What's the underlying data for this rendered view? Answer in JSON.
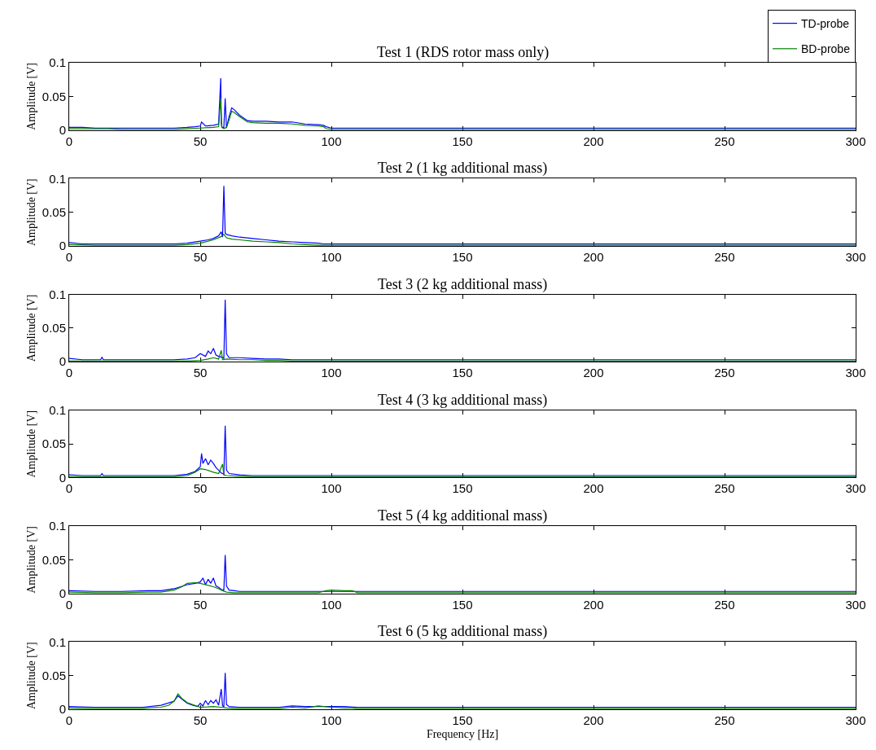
{
  "chart_data": [
    {
      "type": "line",
      "title": "Test 1 (RDS rotor mass only)",
      "ylabel": "Amplitude [V]",
      "xlim": [
        0,
        300
      ],
      "xticks": [
        0,
        50,
        100,
        150,
        200,
        250,
        300
      ],
      "ylim": [
        0,
        0.1
      ],
      "yticks": [
        0,
        0.05,
        0.1
      ],
      "legend": "top right",
      "series": [
        {
          "name": "TD-probe",
          "color": "#0000ff",
          "x": [
            0,
            5,
            10,
            15,
            20,
            30,
            35,
            40,
            45,
            48,
            50,
            50.5,
            52,
            55,
            57,
            57.8,
            58,
            58.3,
            59,
            59.5,
            60,
            61,
            62,
            63,
            65,
            68,
            70,
            75,
            80,
            85,
            90,
            95,
            97,
            98,
            100,
            105,
            110,
            112,
            115,
            150,
            200,
            250,
            300
          ],
          "values": [
            0.004,
            0.004,
            0.003,
            0.003,
            0.003,
            0.003,
            0.003,
            0.003,
            0.004,
            0.005,
            0.006,
            0.012,
            0.006,
            0.007,
            0.009,
            0.077,
            0.01,
            0.004,
            0.004,
            0.047,
            0.003,
            0.02,
            0.033,
            0.03,
            0.022,
            0.014,
            0.013,
            0.013,
            0.012,
            0.012,
            0.009,
            0.008,
            0.007,
            0.005,
            0.003,
            0.003,
            0.003,
            0.003,
            0.003,
            0.003,
            0.003,
            0.003,
            0.003
          ]
        },
        {
          "name": "BD-probe",
          "color": "#008000",
          "x": [
            0,
            5,
            10,
            15,
            20,
            30,
            40,
            45,
            50,
            55,
            57,
            57.8,
            58.2,
            59,
            60,
            61,
            62,
            63,
            65,
            68,
            70,
            75,
            80,
            85,
            90,
            95,
            97,
            98,
            100,
            110,
            150,
            200,
            250,
            300
          ],
          "values": [
            0.002,
            0.002,
            0.002,
            0.002,
            0.001,
            0.001,
            0.001,
            0.002,
            0.003,
            0.004,
            0.005,
            0.046,
            0.004,
            0.002,
            0.004,
            0.015,
            0.028,
            0.026,
            0.02,
            0.012,
            0.011,
            0.01,
            0.01,
            0.009,
            0.007,
            0.006,
            0.005,
            0.002,
            0.001,
            0.001,
            0.001,
            0.001,
            0.001,
            0.001
          ]
        }
      ]
    },
    {
      "type": "line",
      "title": "Test 2 (1 kg additional mass)",
      "ylabel": "Amplitude [V]",
      "xlim": [
        0,
        300
      ],
      "xticks": [
        0,
        50,
        100,
        150,
        200,
        250,
        300
      ],
      "ylim": [
        0,
        0.1
      ],
      "yticks": [
        0,
        0.05,
        0.1
      ],
      "series": [
        {
          "x": [
            0,
            5,
            10,
            20,
            30,
            40,
            45,
            50,
            53,
            55,
            57,
            58,
            58.5,
            59,
            59.5,
            60,
            62,
            65,
            70,
            75,
            80,
            85,
            90,
            95,
            97,
            98,
            100,
            150,
            200,
            250,
            300
          ],
          "color": "#0000ff",
          "values": [
            0.005,
            0.003,
            0.003,
            0.003,
            0.003,
            0.003,
            0.004,
            0.007,
            0.009,
            0.011,
            0.015,
            0.021,
            0.013,
            0.089,
            0.019,
            0.017,
            0.015,
            0.013,
            0.011,
            0.009,
            0.007,
            0.006,
            0.005,
            0.004,
            0.003,
            0.003,
            0.003,
            0.003,
            0.003,
            0.003,
            0.003
          ]
        },
        {
          "x": [
            0,
            10,
            20,
            30,
            40,
            45,
            50,
            55,
            58,
            59,
            60,
            62,
            65,
            70,
            75,
            80,
            85,
            90,
            95,
            100,
            150,
            200,
            250,
            300
          ],
          "color": "#008000",
          "values": [
            0.002,
            0.001,
            0.001,
            0.001,
            0.001,
            0.002,
            0.004,
            0.009,
            0.014,
            0.017,
            0.012,
            0.01,
            0.009,
            0.007,
            0.006,
            0.005,
            0.003,
            0.002,
            0.001,
            0.001,
            0.001,
            0.001,
            0.001,
            0.001
          ]
        }
      ]
    },
    {
      "type": "line",
      "title": "Test 3 (2 kg additional mass)",
      "ylabel": "Amplitude [V]",
      "xlim": [
        0,
        300
      ],
      "xticks": [
        0,
        50,
        100,
        150,
        200,
        250,
        300
      ],
      "ylim": [
        0,
        0.1
      ],
      "yticks": [
        0,
        0.05,
        0.1
      ],
      "series": [
        {
          "x": [
            0,
            5,
            12,
            12.5,
            13,
            20,
            30,
            40,
            45,
            48,
            50,
            52,
            53,
            54,
            55,
            56,
            57,
            58,
            59,
            59.5,
            60,
            61,
            65,
            70,
            75,
            80,
            85,
            88,
            90,
            100,
            150,
            200,
            250,
            300
          ],
          "color": "#0000ff",
          "values": [
            0.005,
            0.003,
            0.003,
            0.007,
            0.003,
            0.003,
            0.003,
            0.003,
            0.004,
            0.006,
            0.012,
            0.008,
            0.016,
            0.012,
            0.02,
            0.01,
            0.008,
            0.007,
            0.005,
            0.092,
            0.012,
            0.006,
            0.006,
            0.005,
            0.004,
            0.004,
            0.003,
            0.003,
            0.003,
            0.003,
            0.003,
            0.003,
            0.003,
            0.003
          ]
        },
        {
          "x": [
            0,
            10,
            20,
            30,
            40,
            45,
            50,
            53,
            55,
            57,
            58,
            58.5,
            60,
            65,
            70,
            75,
            80,
            85,
            90,
            100,
            150,
            200,
            250,
            300
          ],
          "color": "#008000",
          "values": [
            0.001,
            0.001,
            0.001,
            0.001,
            0.001,
            0.001,
            0.002,
            0.004,
            0.006,
            0.004,
            0.017,
            0.003,
            0.004,
            0.003,
            0.003,
            0.002,
            0.002,
            0.001,
            0.001,
            0.001,
            0.001,
            0.001,
            0.001,
            0.001
          ]
        }
      ]
    },
    {
      "type": "line",
      "title": "Test 4 (3 kg additional mass)",
      "ylabel": "Amplitude [V]",
      "xlim": [
        0,
        300
      ],
      "xticks": [
        0,
        50,
        100,
        150,
        200,
        250,
        300
      ],
      "ylim": [
        0,
        0.1
      ],
      "yticks": [
        0,
        0.05,
        0.1
      ],
      "series": [
        {
          "x": [
            0,
            5,
            12,
            12.5,
            13,
            20,
            30,
            40,
            45,
            48,
            50,
            50.5,
            51,
            52,
            53,
            54,
            55,
            56,
            57,
            58,
            59,
            59.5,
            60,
            61,
            65,
            70,
            72,
            75,
            100,
            150,
            200,
            250,
            300
          ],
          "color": "#0000ff",
          "values": [
            0.004,
            0.003,
            0.003,
            0.006,
            0.003,
            0.003,
            0.003,
            0.003,
            0.005,
            0.009,
            0.016,
            0.036,
            0.021,
            0.028,
            0.019,
            0.026,
            0.021,
            0.015,
            0.011,
            0.007,
            0.005,
            0.077,
            0.011,
            0.006,
            0.004,
            0.003,
            0.003,
            0.003,
            0.003,
            0.003,
            0.003,
            0.003,
            0.003
          ]
        },
        {
          "x": [
            0,
            10,
            20,
            30,
            40,
            45,
            48,
            50,
            52,
            55,
            57,
            58.5,
            59,
            60,
            65,
            70,
            75,
            100,
            150,
            200,
            250,
            300
          ],
          "color": "#008000",
          "values": [
            0.001,
            0.001,
            0.001,
            0.001,
            0.001,
            0.003,
            0.008,
            0.013,
            0.012,
            0.008,
            0.006,
            0.02,
            0.004,
            0.003,
            0.002,
            0.001,
            0.001,
            0.001,
            0.001,
            0.001,
            0.001,
            0.001
          ]
        }
      ]
    },
    {
      "type": "line",
      "title": "Test 5 (4 kg additional mass)",
      "ylabel": "Amplitude [V]",
      "xlim": [
        0,
        300
      ],
      "xticks": [
        0,
        50,
        100,
        150,
        200,
        250,
        300
      ],
      "ylim": [
        0,
        0.1
      ],
      "yticks": [
        0,
        0.05,
        0.1
      ],
      "series": [
        {
          "x": [
            0,
            10,
            20,
            30,
            35,
            40,
            45,
            48,
            50,
            51,
            52,
            53,
            54,
            55,
            56,
            57,
            58,
            59,
            59.5,
            60,
            61,
            63,
            65,
            70,
            100,
            150,
            200,
            250,
            300
          ],
          "color": "#0000ff",
          "values": [
            0.004,
            0.003,
            0.003,
            0.004,
            0.004,
            0.007,
            0.013,
            0.015,
            0.017,
            0.023,
            0.013,
            0.021,
            0.015,
            0.023,
            0.011,
            0.009,
            0.006,
            0.005,
            0.057,
            0.011,
            0.005,
            0.004,
            0.003,
            0.003,
            0.003,
            0.003,
            0.003,
            0.003,
            0.003
          ]
        },
        {
          "x": [
            0,
            10,
            20,
            30,
            35,
            40,
            43,
            45,
            48,
            50,
            52,
            55,
            57,
            58.5,
            60,
            63,
            65,
            95,
            98,
            100,
            105,
            108,
            110,
            150,
            200,
            250,
            300
          ],
          "color": "#008000",
          "values": [
            0.002,
            0.001,
            0.001,
            0.002,
            0.002,
            0.005,
            0.01,
            0.015,
            0.016,
            0.015,
            0.013,
            0.01,
            0.007,
            0.004,
            0.002,
            0.001,
            0.001,
            0.001,
            0.004,
            0.005,
            0.004,
            0.004,
            0.001,
            0.001,
            0.001,
            0.001,
            0.001
          ]
        }
      ]
    },
    {
      "type": "line",
      "title": "Test 6 (5 kg additional mass)",
      "xlabel": "Frequency [Hz]",
      "ylabel": "Amplitude [V]",
      "xlim": [
        0,
        300
      ],
      "xticks": [
        0,
        50,
        100,
        150,
        200,
        250,
        300
      ],
      "ylim": [
        0,
        0.1
      ],
      "yticks": [
        0,
        0.05,
        0.1
      ],
      "series": [
        {
          "x": [
            0,
            10,
            20,
            28,
            35,
            40,
            41.5,
            43,
            45,
            47,
            49,
            50,
            51,
            52,
            53,
            54,
            55,
            56,
            57,
            58,
            58.5,
            59,
            59.5,
            60,
            61,
            65,
            70,
            80,
            85,
            90,
            100,
            105,
            110,
            150,
            200,
            250,
            300
          ],
          "color": "#0000ff",
          "values": [
            0.004,
            0.003,
            0.003,
            0.003,
            0.006,
            0.012,
            0.02,
            0.015,
            0.009,
            0.006,
            0.004,
            0.009,
            0.005,
            0.013,
            0.007,
            0.013,
            0.009,
            0.014,
            0.006,
            0.03,
            0.005,
            0.004,
            0.054,
            0.007,
            0.004,
            0.003,
            0.003,
            0.003,
            0.005,
            0.004,
            0.004,
            0.004,
            0.003,
            0.003,
            0.003,
            0.003,
            0.003
          ]
        },
        {
          "x": [
            0,
            10,
            20,
            28,
            30,
            35,
            38,
            40,
            41.5,
            43,
            45,
            50,
            55,
            58,
            60,
            65,
            70,
            80,
            85,
            90,
            95,
            100,
            105,
            108,
            110,
            150,
            200,
            250,
            300
          ],
          "color": "#008000",
          "values": [
            0.002,
            0.001,
            0.001,
            0.001,
            0.002,
            0.003,
            0.006,
            0.012,
            0.023,
            0.016,
            0.01,
            0.003,
            0.004,
            0.003,
            0.002,
            0.001,
            0.001,
            0.001,
            0.003,
            0.002,
            0.005,
            0.003,
            0.002,
            0.002,
            0.001,
            0.001,
            0.001,
            0.001,
            0.001
          ]
        }
      ]
    }
  ]
}
